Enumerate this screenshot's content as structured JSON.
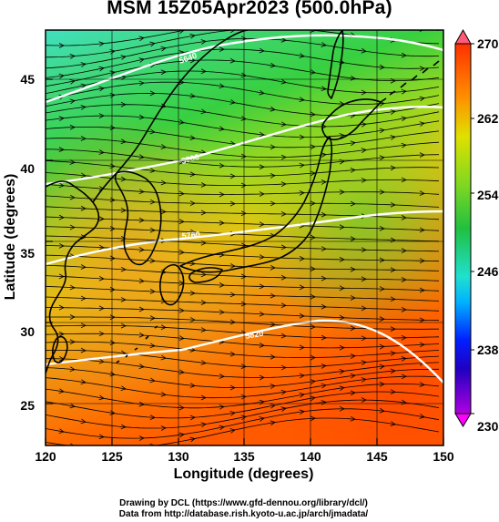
{
  "title": "MSM 15Z05Apr2023 (500.0hPa)",
  "xlabel": "Longitude (degrees)",
  "ylabel": "Latitude  (degrees)",
  "x_ticks": [
    "120",
    "125",
    "130",
    "135",
    "140",
    "145",
    "150"
  ],
  "y_ticks": [
    "45",
    "40",
    "35",
    "30",
    "25"
  ],
  "colorbar_ticks": [
    "270",
    "262",
    "254",
    "246",
    "238",
    "230"
  ],
  "credits": {
    "drawing": "Drawing by DCL (https://www.gfd-dennou.org/library/dcl/)",
    "data": "Data from http://database.rish.kyoto-u.ac.jp/arch/jmadata/"
  },
  "contour_labels": [
    "5640",
    "5700",
    "5760",
    "5820"
  ],
  "colors": {
    "cold": "#40e0c0",
    "mid": "#30d040",
    "warm": "#e0d000",
    "hot": "#ff6000",
    "colorbar_top_arrow": "#ff5a78",
    "colorbar_bottom_arrow": "#ff00ff"
  },
  "map": {
    "lon_range": [
      120,
      150
    ],
    "lat_range": [
      22.4,
      48
    ],
    "field": "temperature (K) shaded, geopotential height contours, wind streamlines",
    "colorbar_range": [
      230,
      270
    ]
  }
}
